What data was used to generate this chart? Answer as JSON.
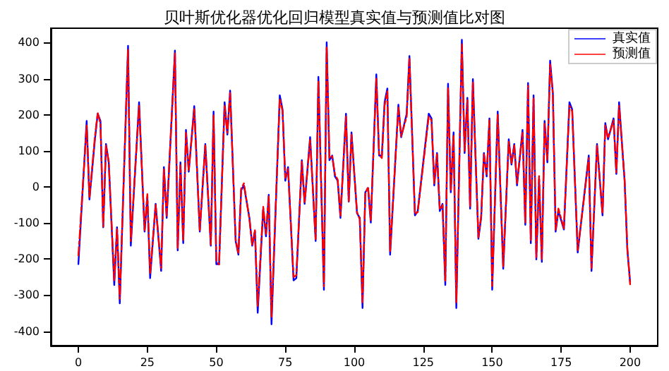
{
  "chart_data": {
    "type": "line",
    "title": "贝叶斯优化器优化回归模型真实值与预测值比对图",
    "x": [
      0,
      3,
      4,
      6,
      7,
      8,
      9,
      10,
      11,
      13,
      14,
      15,
      18,
      19,
      22,
      24,
      25,
      26,
      28,
      30,
      31,
      32,
      35,
      36,
      37,
      38,
      39,
      40,
      42,
      44,
      46,
      48,
      49,
      50,
      51,
      53,
      54,
      55,
      57,
      58,
      59,
      60,
      62,
      63,
      64,
      65,
      67,
      68,
      69,
      70,
      73,
      74,
      75,
      76,
      78,
      79,
      81,
      82,
      84,
      86,
      87,
      89,
      90,
      91,
      92,
      93,
      94,
      95,
      97,
      98,
      99,
      101,
      102,
      103,
      104,
      105,
      106,
      108,
      109,
      110,
      111,
      112,
      113,
      116,
      117,
      119,
      120,
      122,
      123,
      127,
      128,
      129,
      130,
      131,
      132,
      133,
      134,
      135,
      136,
      137,
      139,
      140,
      141,
      142,
      143,
      145,
      146,
      147,
      148,
      149,
      150,
      152,
      154,
      156,
      157,
      158,
      159,
      161,
      162,
      163,
      164,
      165,
      166,
      167,
      168,
      169,
      170,
      171,
      172,
      173,
      174,
      176,
      178,
      179,
      181,
      183,
      185,
      186,
      188,
      190,
      191,
      192,
      194,
      195,
      196,
      198,
      199,
      200
    ],
    "series": [
      {
        "name": "真实值",
        "color": "#0000ff",
        "line_style": "solid",
        "values": [
          -214,
          183,
          -35,
          132,
          203,
          183,
          -112,
          119,
          68,
          -272,
          -112,
          -323,
          391,
          -163,
          235,
          -124,
          -28,
          -253,
          -47,
          -233,
          55,
          -86,
          378,
          -176,
          68,
          -156,
          158,
          42,
          224,
          -124,
          119,
          -163,
          209,
          -214,
          -214,
          235,
          145,
          267,
          -150,
          -188,
          -9,
          4,
          -86,
          -163,
          -124,
          -349,
          -60,
          -137,
          -22,
          -381,
          254,
          215,
          17,
          55,
          -259,
          -253,
          74,
          -47,
          138,
          -150,
          305,
          -285,
          401,
          74,
          87,
          29,
          17,
          -86,
          203,
          -41,
          151,
          -73,
          -86,
          -336,
          -15,
          -3,
          -99,
          312,
          87,
          87,
          235,
          273,
          -188,
          228,
          138,
          203,
          363,
          -79,
          -67,
          203,
          190,
          4,
          94,
          -67,
          -47,
          -272,
          286,
          -15,
          151,
          -336,
          408,
          94,
          247,
          -60,
          299,
          -144,
          -86,
          94,
          29,
          190,
          -285,
          209,
          -227,
          132,
          62,
          119,
          4,
          158,
          -105,
          288,
          -156,
          254,
          -201,
          23,
          -208,
          183,
          68,
          350,
          260,
          -124,
          -67,
          -118,
          235,
          215,
          -182,
          -47,
          87,
          -233,
          119,
          -79,
          177,
          132,
          190,
          36,
          235,
          17,
          -176,
          -263
        ]
      },
      {
        "name": "预测值",
        "color": "#ff0000",
        "line_style": "dashed",
        "values": [
          -190,
          170,
          -30,
          140,
          205,
          175,
          -110,
          115,
          70,
          -260,
          -115,
          -310,
          380,
          -150,
          225,
          -120,
          -20,
          -240,
          -50,
          -225,
          50,
          -80,
          370,
          -170,
          60,
          -150,
          150,
          45,
          215,
          -120,
          115,
          -160,
          200,
          -205,
          -215,
          225,
          150,
          260,
          -145,
          -185,
          -5,
          10,
          -90,
          -160,
          -120,
          -330,
          -55,
          -130,
          -25,
          -360,
          245,
          210,
          25,
          50,
          -250,
          -245,
          70,
          -45,
          130,
          -145,
          295,
          -275,
          390,
          80,
          85,
          35,
          20,
          -80,
          195,
          -40,
          145,
          -70,
          -90,
          -320,
          -20,
          0,
          -95,
          300,
          90,
          80,
          225,
          265,
          -180,
          220,
          140,
          195,
          355,
          -75,
          -70,
          195,
          185,
          10,
          90,
          -60,
          -50,
          -260,
          275,
          -10,
          145,
          -320,
          395,
          100,
          240,
          -55,
          290,
          -140,
          -80,
          90,
          35,
          185,
          -275,
          200,
          -220,
          125,
          65,
          115,
          10,
          150,
          -100,
          280,
          -150,
          245,
          -195,
          30,
          -200,
          175,
          75,
          340,
          255,
          -120,
          -60,
          -115,
          225,
          210,
          -175,
          -50,
          80,
          -225,
          115,
          -75,
          170,
          135,
          185,
          40,
          225,
          20,
          -170,
          -270
        ]
      }
    ],
    "xlim": [
      -10,
      210
    ],
    "xticks": [
      0,
      25,
      50,
      75,
      100,
      125,
      150,
      175,
      200
    ],
    "ylim": [
      -440,
      440
    ],
    "yticks": [
      -400,
      -300,
      -200,
      -100,
      0,
      100,
      200,
      300,
      400
    ],
    "legend": "top right",
    "grid": false,
    "marker": "none"
  }
}
